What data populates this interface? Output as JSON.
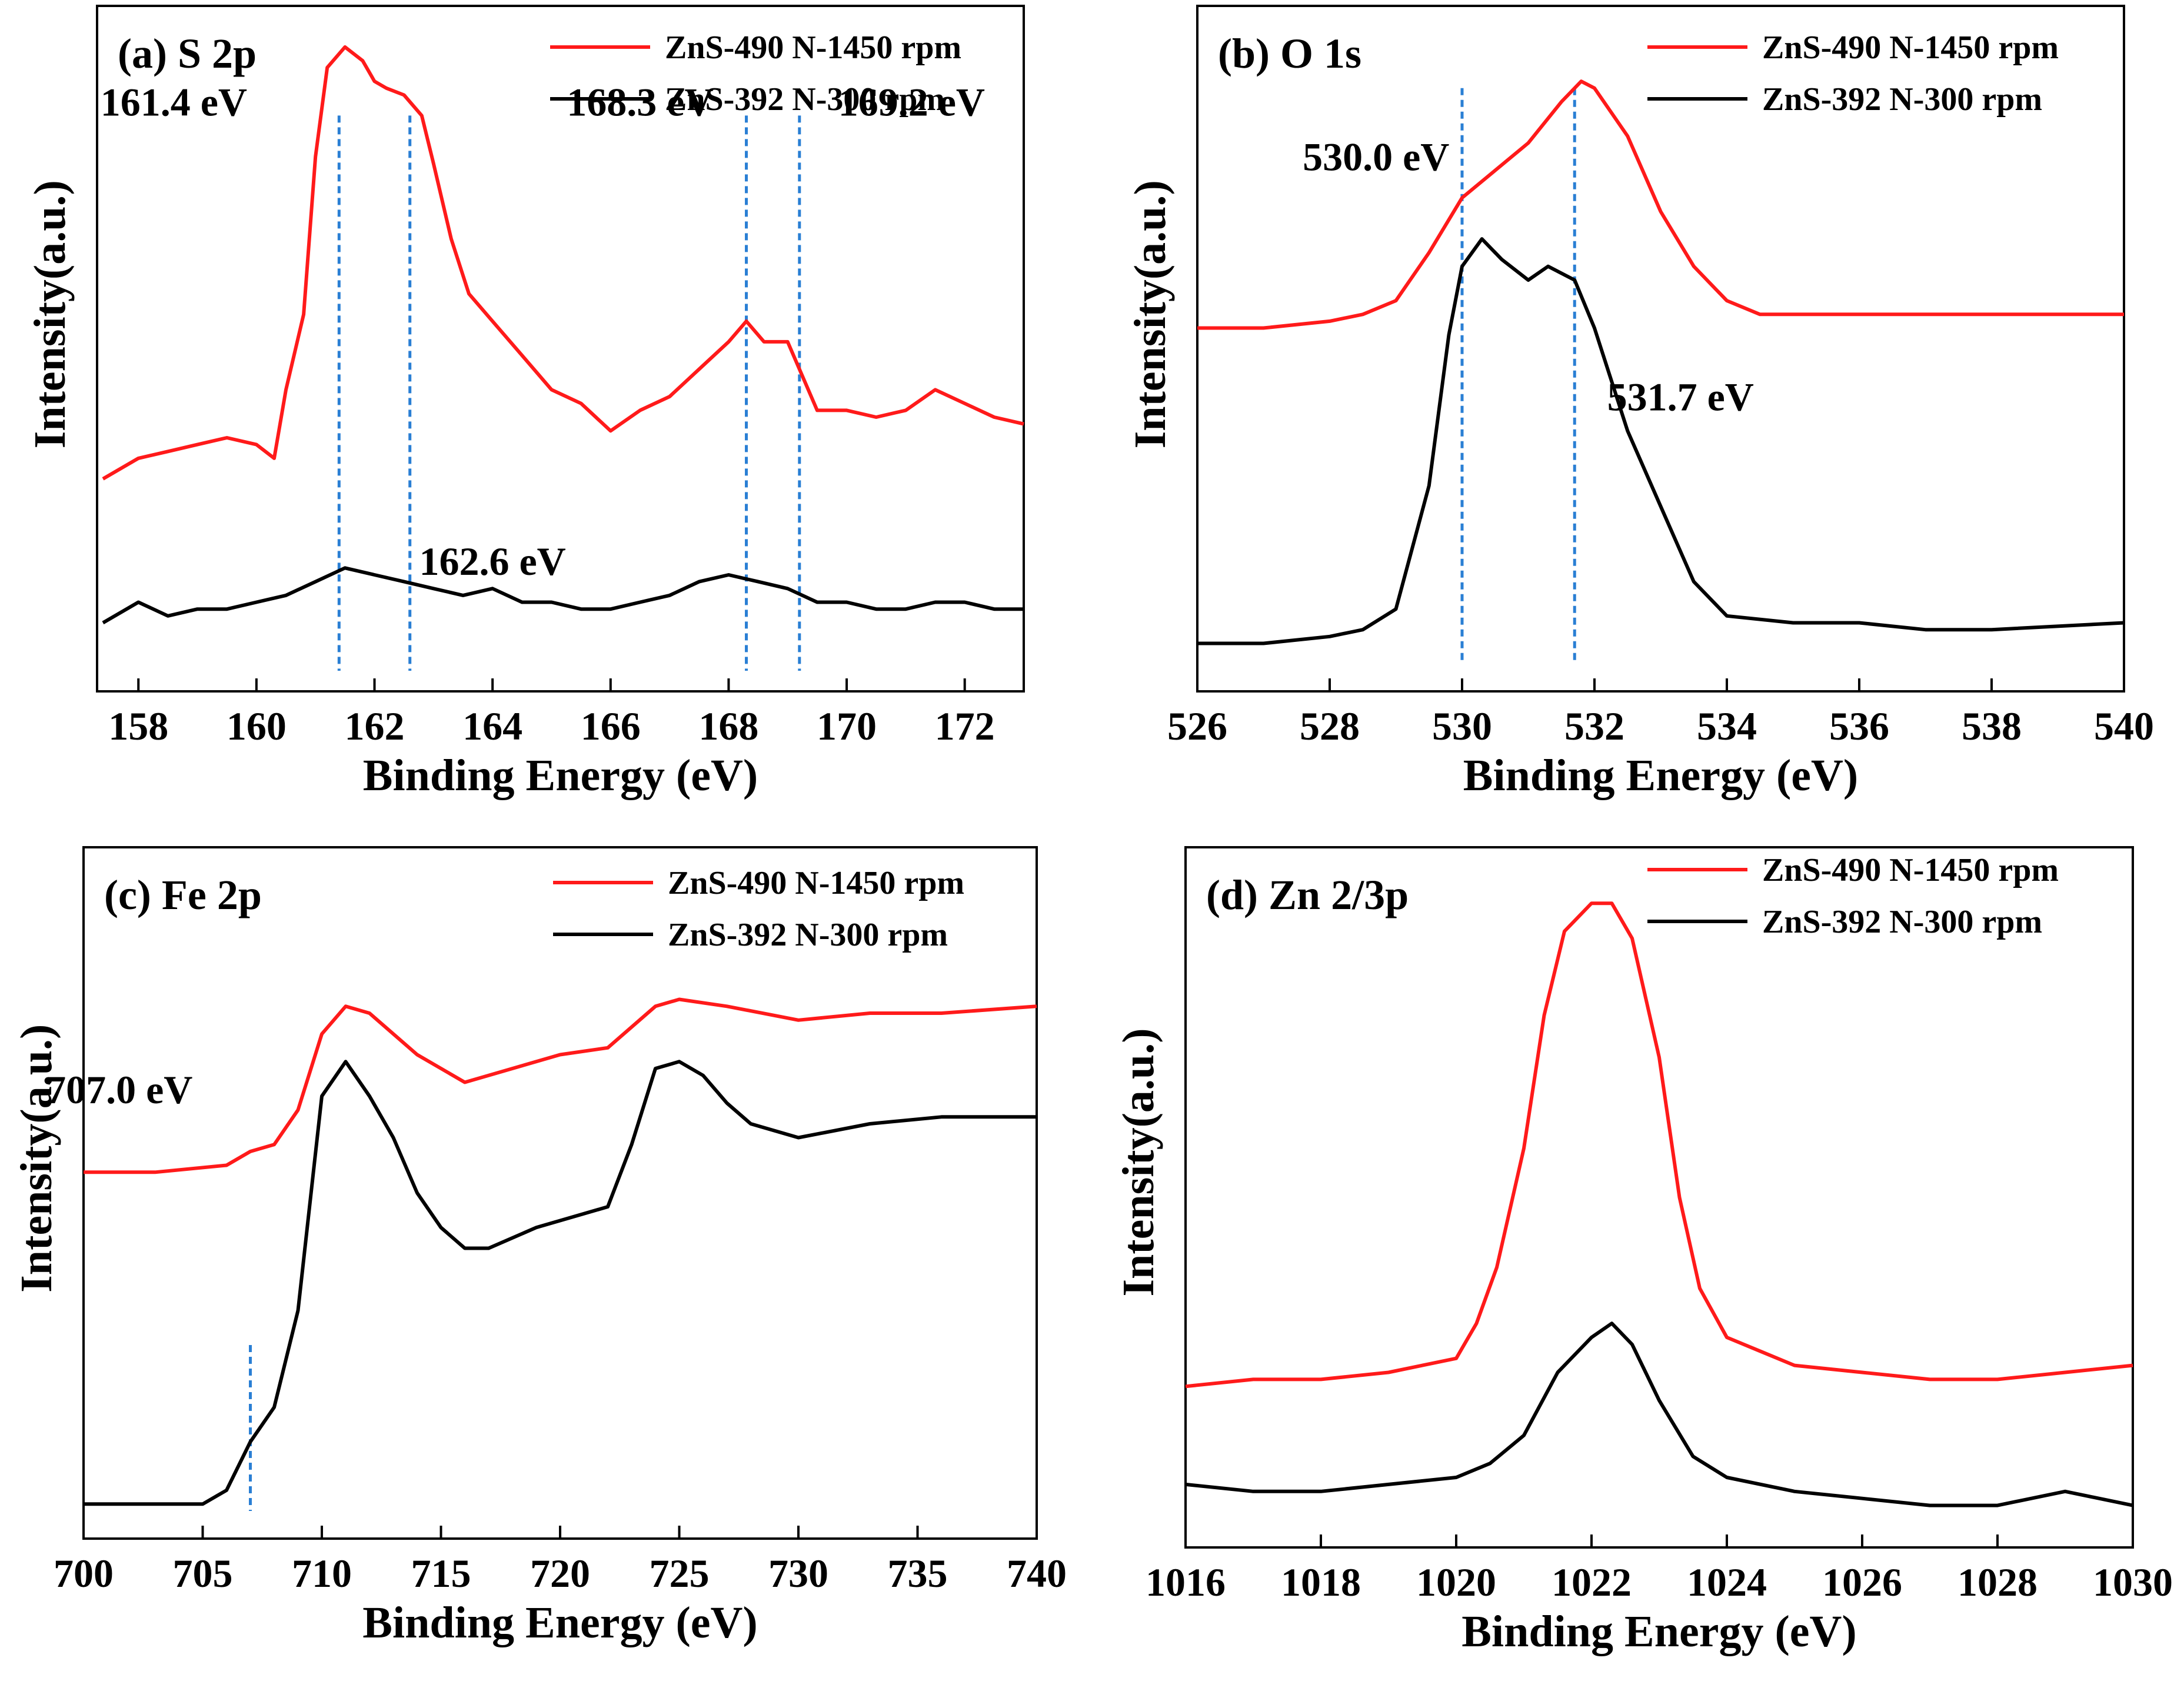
{
  "colors": {
    "series_red": "#ff1a1a",
    "series_black": "#000000",
    "ref_line": "#2a7fd4",
    "axis": "#000000"
  },
  "chart_data": [
    {
      "type": "line",
      "panel": "a",
      "title": "(a)  S 2p",
      "xlabel": "Binding Energy (eV)",
      "ylabel": "Intensity(a.u.)",
      "xlim": [
        157.3,
        173
      ],
      "ylim": [
        0,
        100
      ],
      "xticks": [
        158,
        160,
        162,
        164,
        166,
        168,
        170,
        172
      ],
      "legend_position": "top-right",
      "series": [
        {
          "name": "ZnS-490 N-1450 rpm",
          "color": "#ff1a1a",
          "x": [
            157.4,
            158.0,
            158.5,
            159.0,
            159.5,
            160.0,
            160.3,
            160.5,
            160.8,
            161.0,
            161.2,
            161.5,
            161.8,
            162.0,
            162.2,
            162.5,
            162.8,
            163.0,
            163.3,
            163.6,
            164.0,
            164.5,
            165.0,
            165.5,
            166.0,
            166.5,
            167.0,
            167.5,
            168.0,
            168.3,
            168.6,
            169.0,
            169.5,
            170.0,
            170.5,
            171.0,
            171.5,
            172.0,
            172.5,
            173.0
          ],
          "y": [
            31,
            34,
            35,
            36,
            37,
            36,
            34,
            44,
            55,
            78,
            91,
            94,
            92,
            89,
            88,
            87,
            84,
            77,
            66,
            58,
            54,
            49,
            44,
            42,
            38,
            41,
            43,
            47,
            51,
            54,
            51,
            51,
            41,
            41,
            40,
            41,
            44,
            42,
            40,
            39
          ]
        },
        {
          "name": "ZnS-392 N-300 rpm",
          "color": "#000000",
          "x": [
            157.4,
            158.0,
            158.5,
            159.0,
            159.5,
            160.0,
            160.5,
            161.0,
            161.5,
            162.0,
            162.5,
            163.0,
            163.5,
            164.0,
            164.5,
            165.0,
            165.5,
            166.0,
            166.5,
            167.0,
            167.5,
            168.0,
            168.5,
            169.0,
            169.5,
            170.0,
            170.5,
            171.0,
            171.5,
            172.0,
            172.5,
            173.0
          ],
          "y": [
            10,
            13,
            11,
            12,
            12,
            13,
            14,
            16,
            18,
            17,
            16,
            15,
            14,
            15,
            13,
            13,
            12,
            12,
            13,
            14,
            16,
            17,
            16,
            15,
            13,
            13,
            12,
            12,
            13,
            13,
            12,
            12
          ]
        }
      ],
      "ref_lines_x": [
        161.4,
        162.6,
        168.3,
        169.2
      ],
      "annotations": [
        {
          "text": "161.4 eV",
          "x": 158.6,
          "y": 84
        },
        {
          "text": "168.3 eV",
          "x": 166.5,
          "y": 84
        },
        {
          "text": "169.2 eV",
          "x": 171.1,
          "y": 84
        },
        {
          "text": "162.6 eV",
          "x": 164.0,
          "y": 17
        }
      ]
    },
    {
      "type": "line",
      "panel": "b",
      "title": "(b)  O 1s",
      "xlabel": "Binding Energy (eV)",
      "ylabel": "Intensity(a.u.)",
      "xlim": [
        526,
        540
      ],
      "ylim": [
        0,
        100
      ],
      "xticks": [
        526,
        528,
        530,
        532,
        534,
        536,
        538,
        540
      ],
      "legend_position": "top-right",
      "series": [
        {
          "name": "ZnS-490 N-1450 rpm",
          "color": "#ff1a1a",
          "x": [
            526.0,
            527.0,
            528.0,
            528.5,
            529.0,
            529.5,
            530.0,
            530.5,
            531.0,
            531.5,
            531.8,
            532.0,
            532.5,
            533.0,
            533.5,
            534.0,
            534.5,
            535.0,
            536.0,
            537.0,
            538.0,
            539.0,
            540.0
          ],
          "y": [
            53,
            53,
            54,
            55,
            57,
            64,
            72,
            76,
            80,
            86,
            89,
            88,
            81,
            70,
            62,
            57,
            55,
            55,
            55,
            55,
            55,
            55,
            55
          ]
        },
        {
          "name": "ZnS-392 N-300 rpm",
          "color": "#000000",
          "x": [
            526.0,
            527.0,
            528.0,
            528.5,
            529.0,
            529.5,
            529.8,
            530.0,
            530.3,
            530.6,
            531.0,
            531.3,
            531.7,
            532.0,
            532.5,
            533.0,
            533.5,
            534.0,
            535.0,
            536.0,
            537.0,
            538.0,
            540.0
          ],
          "y": [
            7,
            7,
            8,
            9,
            12,
            30,
            52,
            62,
            66,
            63,
            60,
            62,
            60,
            53,
            38,
            27,
            16,
            11,
            10,
            10,
            9,
            9,
            10
          ]
        }
      ],
      "ref_lines_x": [
        530.0,
        531.7
      ],
      "annotations": [
        {
          "text": "530.0 eV",
          "x": 528.7,
          "y": 76
        },
        {
          "text": "531.7 eV",
          "x": 533.3,
          "y": 41
        }
      ]
    },
    {
      "type": "line",
      "panel": "c",
      "title": "(c)   Fe 2p",
      "xlabel": "Binding Energy (eV)",
      "ylabel": "Intensity(a.u.)",
      "xlim": [
        700,
        740
      ],
      "ylim": [
        0,
        100
      ],
      "xticks": [
        700,
        705,
        710,
        715,
        720,
        725,
        730,
        735,
        740
      ],
      "legend_position": "top-right",
      "series": [
        {
          "name": "ZnS-490 N-1450 rpm",
          "color": "#ff1a1a",
          "x": [
            700.0,
            703.0,
            706.0,
            707.0,
            708.0,
            709.0,
            710.0,
            711.0,
            712.0,
            714.0,
            716.0,
            718.0,
            720.0,
            722.0,
            724.0,
            725.0,
            727.0,
            730.0,
            733.0,
            736.0,
            740.0
          ],
          "y": [
            53,
            53,
            54,
            56,
            57,
            62,
            73,
            77,
            76,
            70,
            66,
            68,
            70,
            71,
            77,
            78,
            77,
            75,
            76,
            76,
            77
          ]
        },
        {
          "name": "ZnS-392 N-300 rpm",
          "color": "#000000",
          "x": [
            700.0,
            703.0,
            705.0,
            706.0,
            707.0,
            708.0,
            709.0,
            710.0,
            711.0,
            712.0,
            713.0,
            714.0,
            715.0,
            716.0,
            717.0,
            719.0,
            721.0,
            722.0,
            723.0,
            724.0,
            725.0,
            726.0,
            727.0,
            728.0,
            730.0,
            733.0,
            736.0,
            740.0
          ],
          "y": [
            5,
            5,
            5,
            7,
            14,
            19,
            33,
            64,
            69,
            64,
            58,
            50,
            45,
            42,
            42,
            45,
            47,
            48,
            57,
            68,
            69,
            67,
            63,
            60,
            58,
            60,
            61,
            61
          ]
        }
      ],
      "ref_lines_x": [
        707.0
      ],
      "annotations": [
        {
          "text": "707.0 eV",
          "x": 701.5,
          "y": 63
        }
      ]
    },
    {
      "type": "line",
      "panel": "d",
      "title": "(d)  Zn 2/3p",
      "xlabel": "Binding Energy (eV)",
      "ylabel": "Intensity(a.u.)",
      "xlim": [
        1016,
        1030
      ],
      "ylim": [
        0,
        100
      ],
      "xticks": [
        1016,
        1018,
        1020,
        1022,
        1024,
        1026,
        1028,
        1030
      ],
      "legend_position": "top-right",
      "series": [
        {
          "name": "ZnS-490 N-1450 rpm",
          "color": "#ff1a1a",
          "x": [
            1016.0,
            1017.0,
            1018.0,
            1019.0,
            1019.5,
            1020.0,
            1020.3,
            1020.6,
            1021.0,
            1021.3,
            1021.6,
            1022.0,
            1022.3,
            1022.6,
            1023.0,
            1023.3,
            1023.6,
            1024.0,
            1024.5,
            1025.0,
            1026.0,
            1027.0,
            1028.0,
            1029.0,
            1030.0
          ],
          "y": [
            23,
            24,
            24,
            25,
            26,
            27,
            32,
            40,
            57,
            76,
            88,
            92,
            92,
            87,
            70,
            50,
            37,
            30,
            28,
            26,
            25,
            24,
            24,
            25,
            26
          ]
        },
        {
          "name": "ZnS-392 N-300 rpm",
          "color": "#000000",
          "x": [
            1016.0,
            1017.0,
            1018.0,
            1019.0,
            1020.0,
            1020.5,
            1021.0,
            1021.5,
            1022.0,
            1022.3,
            1022.6,
            1023.0,
            1023.5,
            1024.0,
            1025.0,
            1026.0,
            1027.0,
            1028.0,
            1029.0,
            1030.0
          ],
          "y": [
            9,
            8,
            8,
            9,
            10,
            12,
            16,
            25,
            30,
            32,
            29,
            21,
            13,
            10,
            8,
            7,
            6,
            6,
            8,
            6
          ]
        }
      ],
      "ref_lines_x": [],
      "annotations": []
    }
  ]
}
